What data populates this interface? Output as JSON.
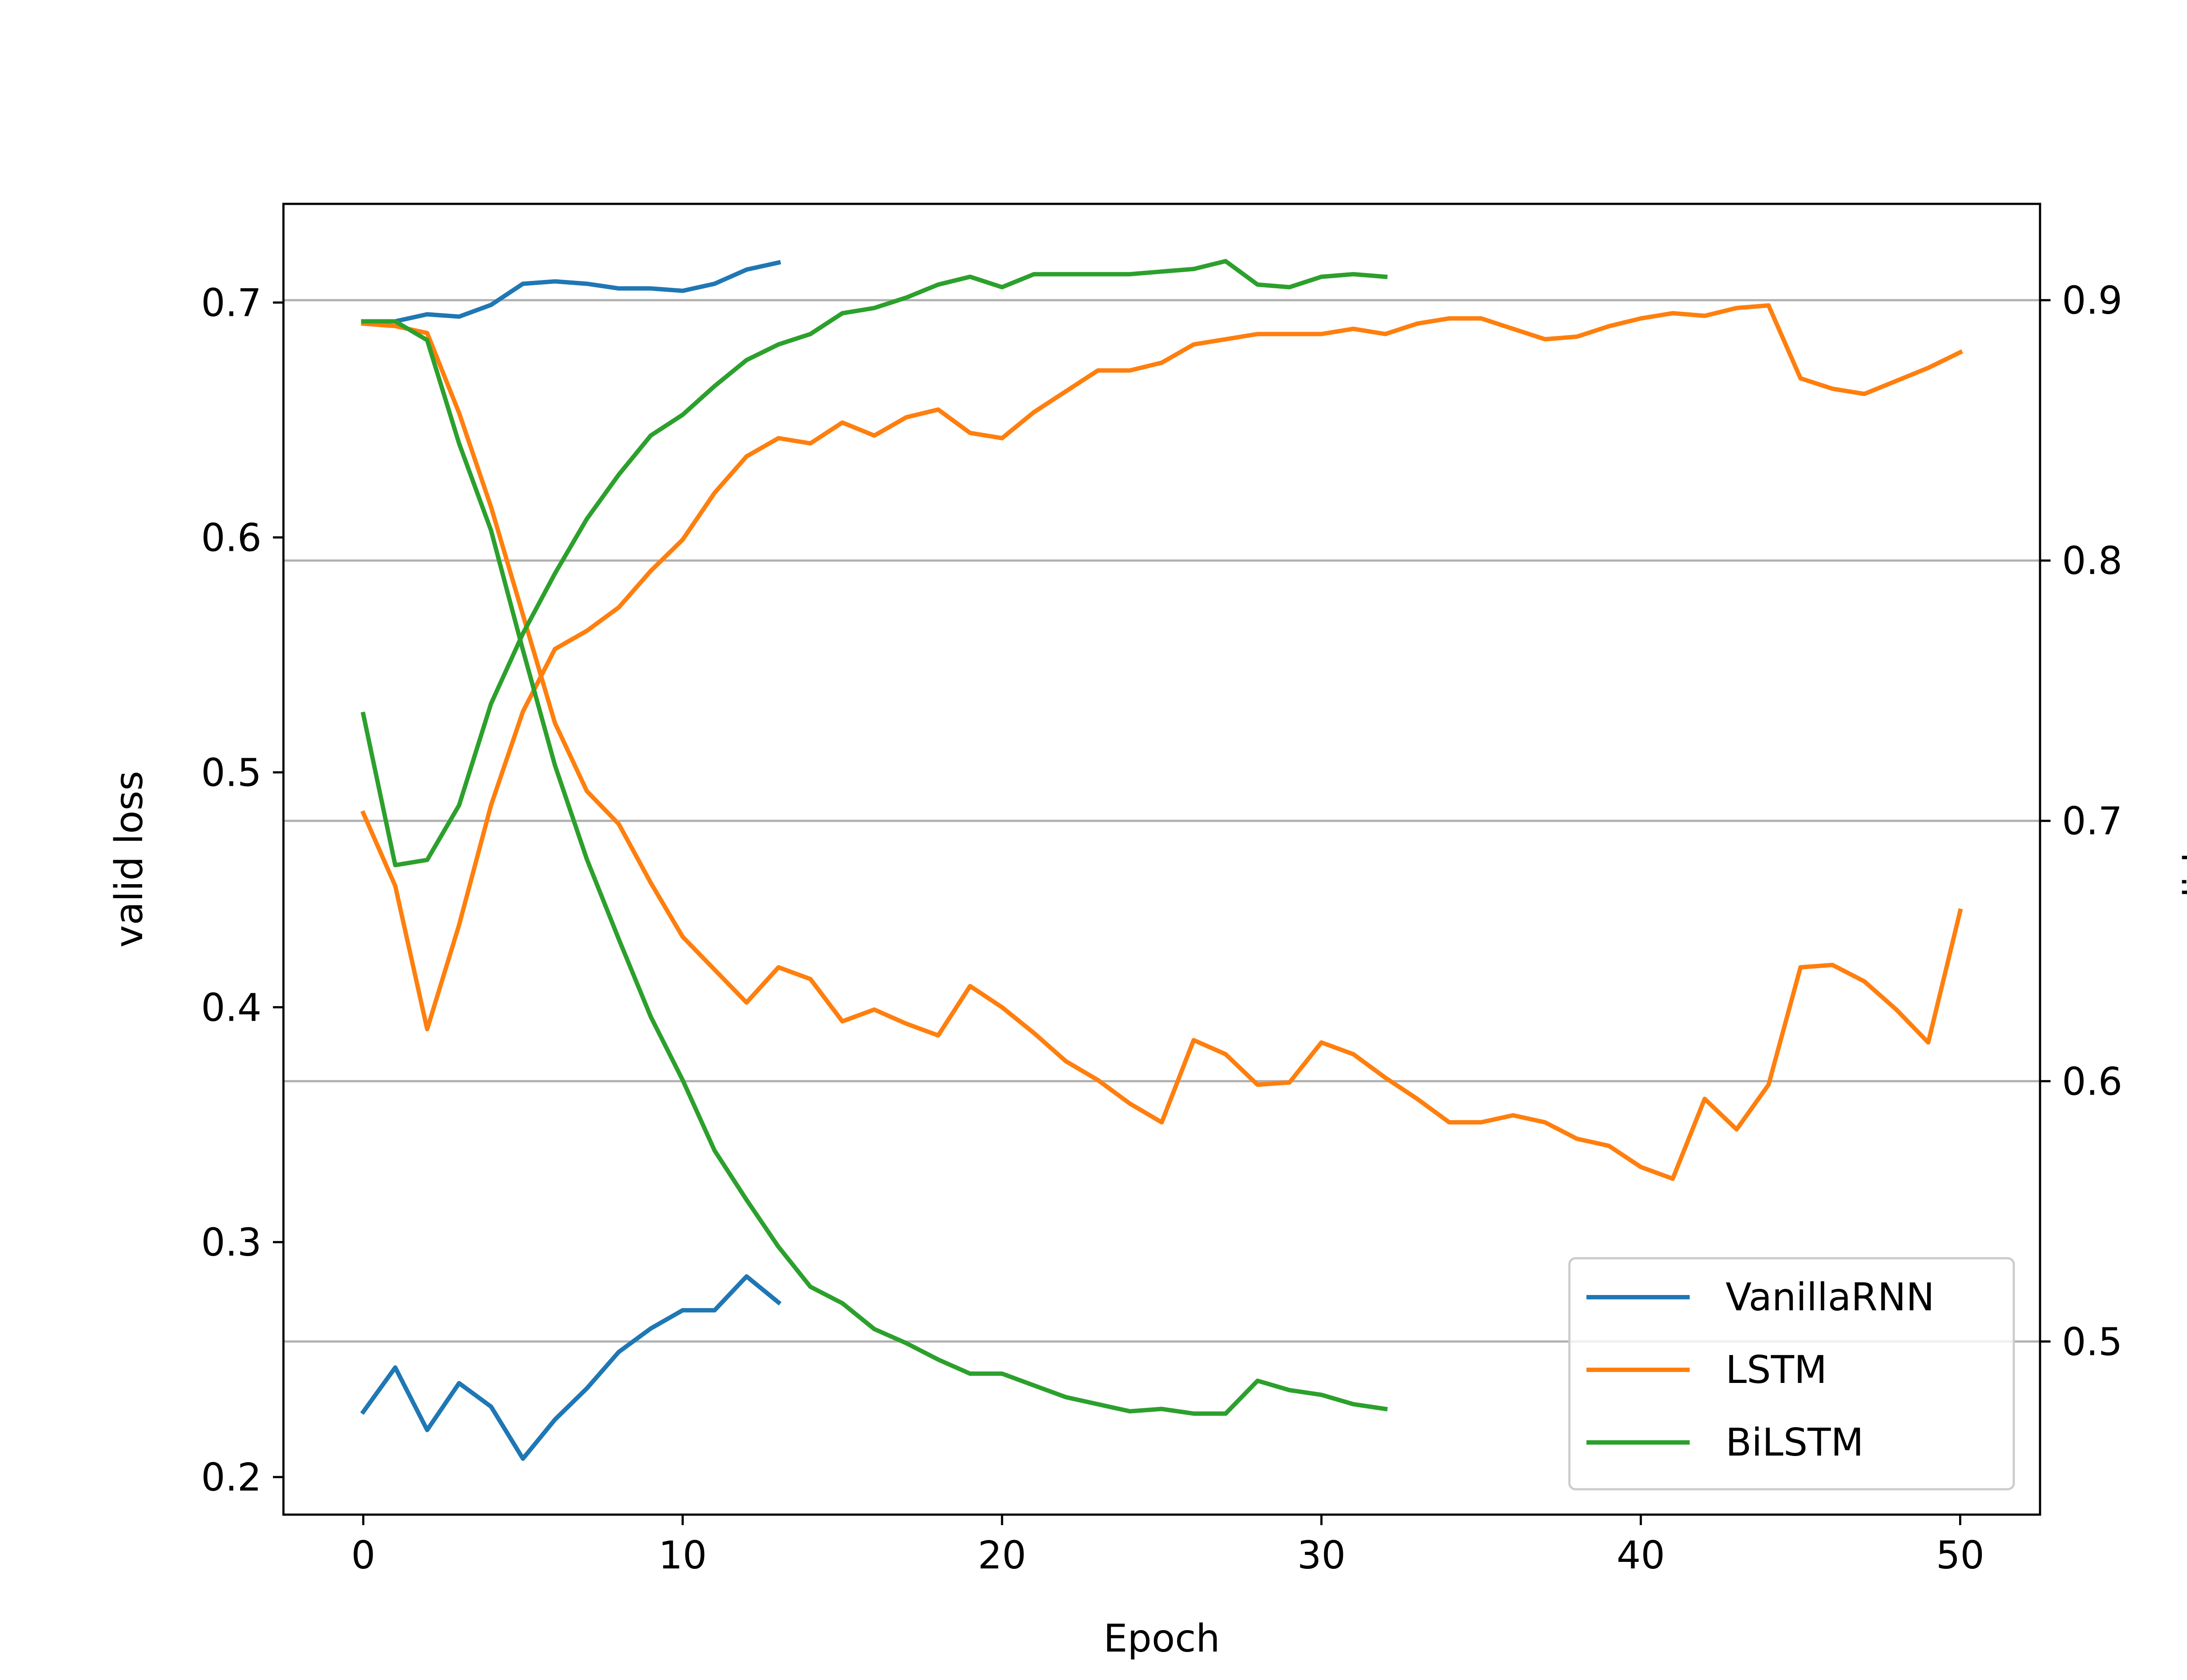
{
  "chart_data": {
    "type": "line",
    "xlabel": "Epoch",
    "ylabel_left": "valid loss",
    "ylabel_right": "valid acc",
    "x_ticks": [
      0,
      10,
      20,
      30,
      40,
      50
    ],
    "xlim": [
      -2.5,
      52.5
    ],
    "ylim_left": [
      0.184,
      0.742
    ],
    "ylim_right": [
      0.4335,
      0.937
    ],
    "left_ticks": [
      0.2,
      0.3,
      0.4,
      0.5,
      0.6,
      0.7
    ],
    "right_ticks": [
      0.5,
      0.6,
      0.7,
      0.8,
      0.9
    ],
    "grid": "horizontal lines at right-axis ticks",
    "legend_position": "lower-right",
    "colors": {
      "VanillaRNN": "#1f77b4",
      "LSTM": "#ff7f0e",
      "BiLSTM": "#2ca02c",
      "grid": "#b0b0b0"
    },
    "series": [
      {
        "name": "VanillaRNN",
        "axis": "left",
        "metric": "loss",
        "color": "#1f77b4",
        "values": [
          0.692,
          0.692,
          0.695,
          0.694,
          0.699,
          0.708,
          0.709,
          0.708,
          0.706,
          0.706,
          0.705,
          0.708,
          0.714,
          0.717
        ]
      },
      {
        "name": "VanillaRNN",
        "axis": "right",
        "metric": "acc",
        "color": "#1f77b4",
        "values": [
          0.473,
          0.49,
          0.466,
          0.484,
          0.475,
          0.455,
          0.47,
          0.482,
          0.496,
          0.505,
          0.512,
          0.512,
          0.525,
          0.515
        ]
      },
      {
        "name": "LSTM",
        "axis": "left",
        "metric": "loss",
        "color": "#ff7f0e",
        "values": [
          0.691,
          0.69,
          0.687,
          0.653,
          0.613,
          0.567,
          0.521,
          0.492,
          0.478,
          0.453,
          0.43,
          0.416,
          0.402,
          0.417,
          0.412,
          0.394,
          0.399,
          0.393,
          0.388,
          0.409,
          0.4,
          0.389,
          0.377,
          0.369,
          0.359,
          0.351,
          0.386,
          0.38,
          0.367,
          0.368,
          0.385,
          0.38,
          0.37,
          0.361,
          0.351,
          0.351,
          0.354,
          0.351,
          0.344,
          0.341,
          0.332,
          0.327,
          0.361,
          0.348,
          0.367,
          0.417,
          0.418,
          0.411,
          0.399,
          0.385,
          0.441
        ]
      },
      {
        "name": "LSTM",
        "axis": "right",
        "metric": "acc",
        "color": "#ff7f0e",
        "values": [
          0.703,
          0.675,
          0.62,
          0.66,
          0.706,
          0.742,
          0.766,
          0.773,
          0.782,
          0.796,
          0.808,
          0.826,
          0.84,
          0.847,
          0.845,
          0.853,
          0.848,
          0.855,
          0.858,
          0.849,
          0.847,
          0.857,
          0.865,
          0.873,
          0.873,
          0.876,
          0.883,
          0.885,
          0.887,
          0.887,
          0.887,
          0.889,
          0.887,
          0.891,
          0.893,
          0.893,
          0.889,
          0.885,
          0.886,
          0.89,
          0.893,
          0.895,
          0.894,
          0.897,
          0.898,
          0.87,
          0.866,
          0.864,
          0.869,
          0.874,
          0.88
        ]
      },
      {
        "name": "BiLSTM",
        "axis": "left",
        "metric": "loss",
        "color": "#2ca02c",
        "values": [
          0.692,
          0.692,
          0.684,
          0.64,
          0.603,
          0.552,
          0.503,
          0.463,
          0.429,
          0.396,
          0.369,
          0.339,
          0.318,
          0.298,
          0.281,
          0.274,
          0.263,
          0.257,
          0.25,
          0.244,
          0.244,
          0.239,
          0.234,
          0.231,
          0.228,
          0.229,
          0.227,
          0.227,
          0.241,
          0.237,
          0.235,
          0.231,
          0.229
        ]
      },
      {
        "name": "BiLSTM",
        "axis": "right",
        "metric": "acc",
        "color": "#2ca02c",
        "values": [
          0.741,
          0.683,
          0.685,
          0.706,
          0.745,
          0.772,
          0.795,
          0.816,
          0.833,
          0.848,
          0.856,
          0.867,
          0.877,
          0.883,
          0.887,
          0.895,
          0.897,
          0.901,
          0.906,
          0.909,
          0.905,
          0.91,
          0.91,
          0.91,
          0.91,
          0.911,
          0.912,
          0.915,
          0.906,
          0.905,
          0.909,
          0.91,
          0.909
        ]
      }
    ]
  }
}
